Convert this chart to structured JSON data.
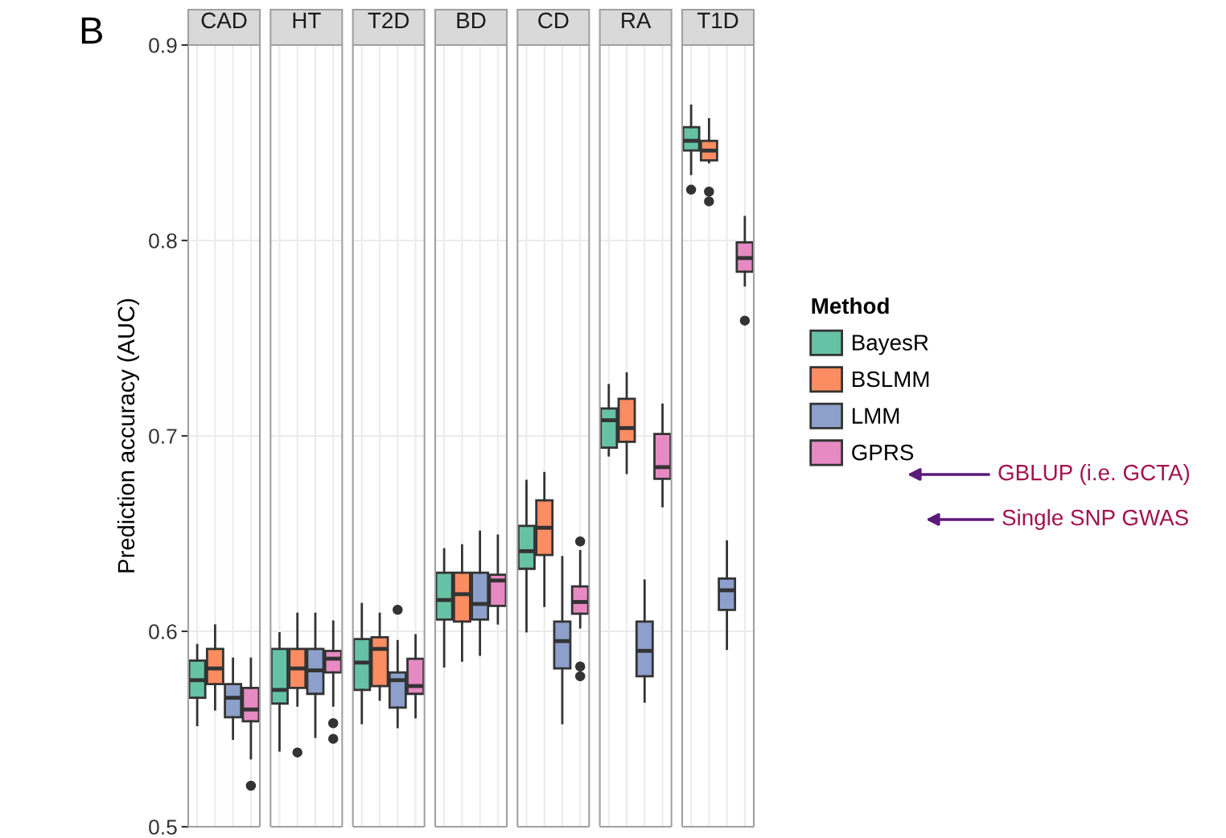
{
  "chart_data": {
    "type": "box",
    "ylabel": "Prediction accuracy (AUC)",
    "annotations": [
      "B",
      "GBLUP (i.e. GCTA)",
      "Single SNP GWAS"
    ],
    "categories": [
      "CAD",
      "HT",
      "T2D",
      "BD",
      "CD",
      "RA",
      "T1D"
    ],
    "ylim": [
      0.5,
      0.9
    ],
    "yticks": [
      0.5,
      0.6,
      0.7,
      0.8,
      0.9
    ],
    "grid": true,
    "legend": "right",
    "legend_title": "Method",
    "series": [
      {
        "name": "BayesR",
        "color": "#66c2a5",
        "boxes": [
          {
            "low": 0.552,
            "q1": 0.566,
            "median": 0.575,
            "q3": 0.585,
            "high": 0.593
          },
          {
            "low": 0.539,
            "q1": 0.563,
            "median": 0.57,
            "q3": 0.591,
            "high": 0.599
          },
          {
            "low": 0.553,
            "q1": 0.57,
            "median": 0.584,
            "q3": 0.596,
            "high": 0.614
          },
          {
            "low": 0.582,
            "q1": 0.606,
            "median": 0.616,
            "q3": 0.63,
            "high": 0.642
          },
          {
            "low": 0.6,
            "q1": 0.632,
            "median": 0.641,
            "q3": 0.654,
            "high": 0.677
          },
          {
            "low": 0.69,
            "q1": 0.694,
            "median": 0.708,
            "q3": 0.714,
            "high": 0.726
          },
          {
            "low": 0.834,
            "q1": 0.846,
            "median": 0.851,
            "q3": 0.858,
            "high": 0.869,
            "outliers": [
              0.826
            ]
          }
        ]
      },
      {
        "name": "BSLMM",
        "color": "#fc8d62",
        "boxes": [
          {
            "low": 0.56,
            "q1": 0.573,
            "median": 0.581,
            "q3": 0.591,
            "high": 0.603
          },
          {
            "low": 0.562,
            "q1": 0.571,
            "median": 0.581,
            "q3": 0.591,
            "high": 0.609,
            "outliers": [
              0.538
            ]
          },
          {
            "low": 0.565,
            "q1": 0.572,
            "median": 0.591,
            "q3": 0.597,
            "high": 0.609
          },
          {
            "low": 0.585,
            "q1": 0.605,
            "median": 0.619,
            "q3": 0.63,
            "high": 0.644
          },
          {
            "low": 0.613,
            "q1": 0.639,
            "median": 0.653,
            "q3": 0.667,
            "high": 0.681
          },
          {
            "low": 0.681,
            "q1": 0.697,
            "median": 0.704,
            "q3": 0.719,
            "high": 0.732
          },
          {
            "low": 0.84,
            "q1": 0.841,
            "median": 0.846,
            "q3": 0.851,
            "high": 0.862,
            "outliers": [
              0.825,
              0.82
            ]
          }
        ]
      },
      {
        "name": "LMM",
        "color": "#8da0cb",
        "boxes": [
          {
            "low": 0.545,
            "q1": 0.556,
            "median": 0.566,
            "q3": 0.573,
            "high": 0.586
          },
          {
            "low": 0.546,
            "q1": 0.568,
            "median": 0.58,
            "q3": 0.591,
            "high": 0.609
          },
          {
            "low": 0.551,
            "q1": 0.561,
            "median": 0.575,
            "q3": 0.579,
            "high": 0.595,
            "outliers": [
              0.611
            ]
          },
          {
            "low": 0.588,
            "q1": 0.606,
            "median": 0.614,
            "q3": 0.63,
            "high": 0.651
          },
          {
            "low": 0.553,
            "q1": 0.581,
            "median": 0.595,
            "q3": 0.605,
            "high": 0.638
          },
          {
            "low": 0.564,
            "q1": 0.577,
            "median": 0.59,
            "q3": 0.605,
            "high": 0.626
          },
          {
            "low": 0.591,
            "q1": 0.611,
            "median": 0.621,
            "q3": 0.627,
            "high": 0.646
          }
        ]
      },
      {
        "name": "GPRS",
        "color": "#e78ac3",
        "boxes": [
          {
            "low": 0.535,
            "q1": 0.554,
            "median": 0.56,
            "q3": 0.571,
            "high": 0.586,
            "outliers": [
              0.521
            ]
          },
          {
            "low": 0.562,
            "q1": 0.579,
            "median": 0.586,
            "q3": 0.59,
            "high": 0.605,
            "outliers": [
              0.553,
              0.545
            ]
          },
          {
            "low": 0.556,
            "q1": 0.568,
            "median": 0.572,
            "q3": 0.586,
            "high": 0.598
          },
          {
            "low": 0.604,
            "q1": 0.613,
            "median": 0.626,
            "q3": 0.629,
            "high": 0.649
          },
          {
            "low": 0.602,
            "q1": 0.609,
            "median": 0.615,
            "q3": 0.623,
            "high": 0.641,
            "outliers": [
              0.646,
              0.582,
              0.577
            ]
          },
          {
            "low": 0.664,
            "q1": 0.678,
            "median": 0.684,
            "q3": 0.701,
            "high": 0.716
          },
          {
            "low": 0.777,
            "q1": 0.784,
            "median": 0.791,
            "q3": 0.799,
            "high": 0.812,
            "outliers": [
              0.759
            ]
          }
        ]
      }
    ]
  }
}
